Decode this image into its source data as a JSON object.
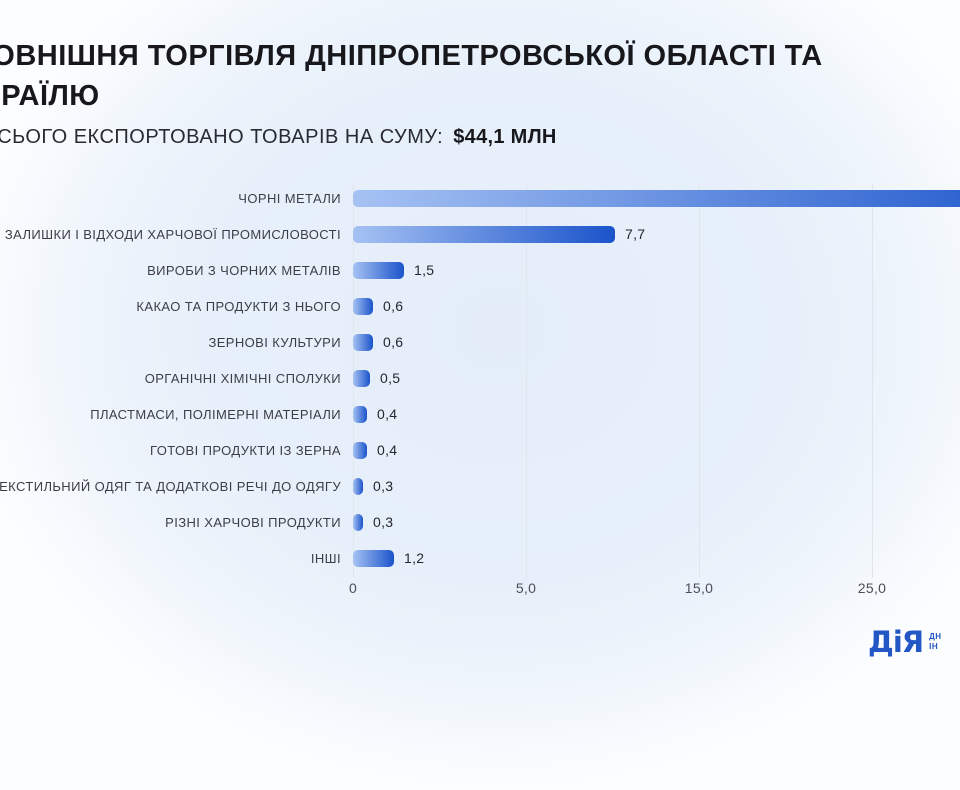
{
  "header": {
    "title_line1": "ЗОВНІШНЯ ТОРГІВЛЯ ДНІПРОПЕТРОВСЬКОЇ ОБЛАСТІ ТА",
    "title_line2": "ІЗРАЇЛЮ",
    "subtitle_label": "УСЬОГО ЕКСПОРТОВАНО ТОВАРІВ НА СУМУ:",
    "subtitle_amount": "$44,1 млн"
  },
  "chart_data": {
    "type": "bar",
    "orientation": "horizontal",
    "categories": [
      "ЧОРНІ МЕТАЛИ",
      "ЗАЛИШКИ І ВІДХОДИ ХАРЧОВОЇ ПРОМИСЛОВОСТІ",
      "ВИРОБИ З ЧОРНИХ МЕТАЛІВ",
      "КАКАО ТА ПРОДУКТИ З НЬОГО",
      "ЗЕРНОВІ КУЛЬТУРИ",
      "ОРГАНІЧНІ ХІМІЧНІ СПОЛУКИ",
      "ПЛАСТМАСИ, ПОЛІМЕРНІ МАТЕРІАЛИ",
      "ГОТОВІ ПРОДУКТИ ІЗ ЗЕРНА",
      "ТЕКСТИЛЬНИЙ ОДЯГ ТА ДОДАТКОВІ РЕЧІ ДО ОДЯГУ",
      "РІЗНІ ХАРЧОВІ ПРОДУКТИ",
      "ІНШІ"
    ],
    "values": [
      null,
      7.7,
      1.5,
      0.6,
      0.6,
      0.5,
      0.4,
      0.4,
      0.3,
      0.3,
      1.2
    ],
    "value_labels": [
      "",
      "7,7",
      "1,5",
      "0,6",
      "0,6",
      "0,5",
      "0,4",
      "0,4",
      "0,3",
      "0,3",
      "1,2"
    ],
    "first_bar_overflows_right": true,
    "x_ticks": [
      "0",
      "5,0",
      "15,0",
      "25,0"
    ],
    "grid": "vertical-lines",
    "bar_gradient_start": "#a6c2f3",
    "bar_gradient_end": "#1a53ca"
  },
  "logo": {
    "brand": "ДіЯ",
    "side_line1": "ДН",
    "side_line2": "ІН"
  }
}
